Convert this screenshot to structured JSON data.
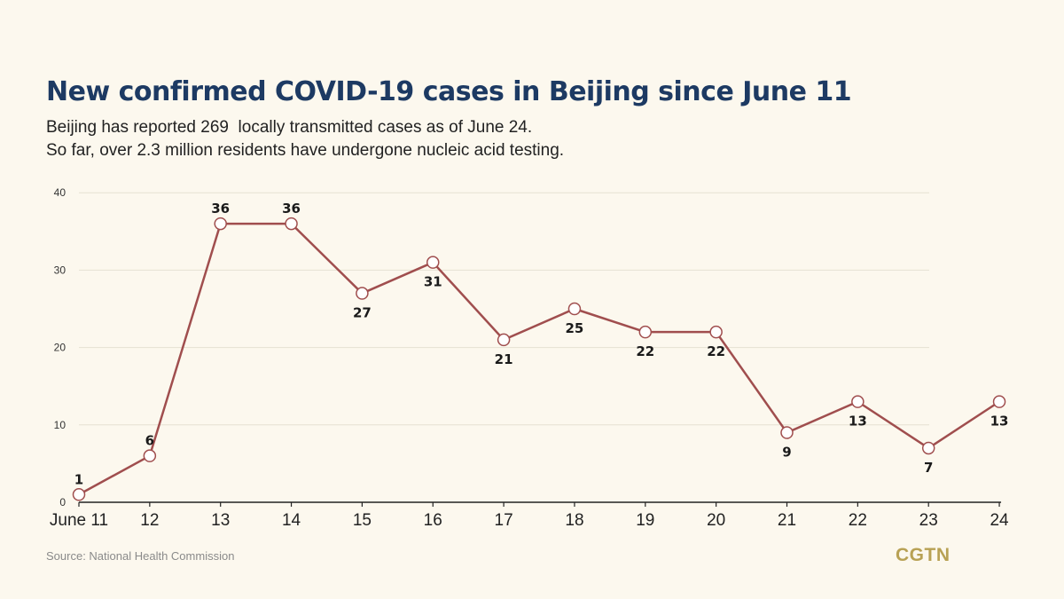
{
  "header": {
    "title": "New confirmed COVID-19 cases in Beijing since June 11",
    "subtitle_line1": "Beijing has reported 269  locally transmitted cases as of June 24.",
    "subtitle_line2": "So far, over 2.3 million residents have undergone nucleic acid testing."
  },
  "footer": {
    "source": "Source: National Health Commission",
    "logo_text": "CGTN"
  },
  "colors": {
    "line": "#a04e4e",
    "marker_fill": "#ffffff",
    "title": "#1d3a63",
    "grid": "#e6e1d2",
    "background": "#fcf8ee",
    "logo": "#b8a154"
  },
  "chart_data": {
    "type": "line",
    "categories": [
      "June 11",
      "12",
      "13",
      "14",
      "15",
      "16",
      "17",
      "18",
      "19",
      "20",
      "21",
      "22",
      "23",
      "24"
    ],
    "series": [
      {
        "values": [
          1,
          6,
          36,
          36,
          27,
          31,
          21,
          25,
          22,
          22,
          9,
          13,
          7,
          13
        ]
      }
    ],
    "label_position": [
      "above",
      "above",
      "above",
      "above",
      "below",
      "below",
      "below",
      "below",
      "below",
      "below",
      "below",
      "below",
      "below",
      "below"
    ],
    "yticks": [
      0,
      10,
      20,
      30,
      40
    ],
    "ylim": [
      0,
      40
    ],
    "grid": true,
    "legend": false,
    "xlabel": "",
    "ylabel": "",
    "title": "New confirmed COVID-19 cases in Beijing since June 11"
  }
}
